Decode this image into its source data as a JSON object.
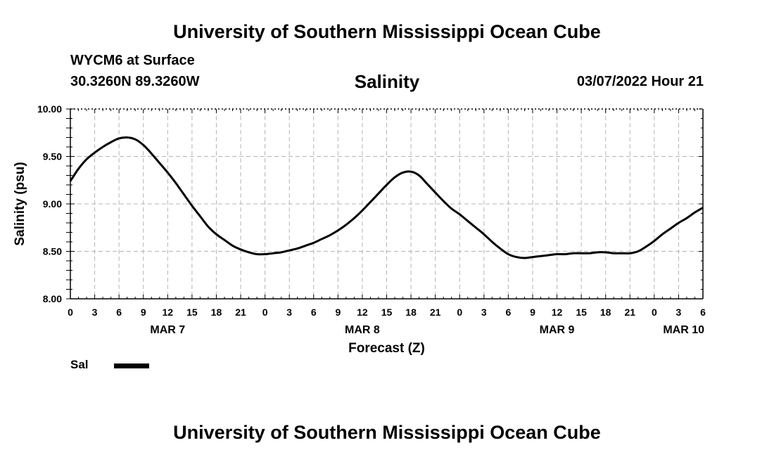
{
  "header": {
    "title": "University of Southern Mississippi Ocean Cube",
    "station": "WYCM6 at Surface",
    "coords": "30.3260N  89.3260W",
    "datetime": "03/07/2022 Hour 21"
  },
  "footer": {
    "title": "University of Southern Mississippi Ocean Cube"
  },
  "legend": {
    "label": "Sal",
    "color": "#000000"
  },
  "chart_data": {
    "type": "line",
    "title": "Salinity",
    "xlabel": "Forecast (Z)",
    "ylabel": "Salinity (psu)",
    "ylim": [
      8.0,
      10.0
    ],
    "yticks": [
      "8.00",
      "8.50",
      "9.00",
      "9.50",
      "10.00"
    ],
    "xlim": [
      0,
      78
    ],
    "xtick_labels": [
      "0",
      "3",
      "6",
      "9",
      "12",
      "15",
      "18",
      "21",
      "0",
      "3",
      "6",
      "9",
      "12",
      "15",
      "18",
      "21",
      "0",
      "3",
      "6",
      "9",
      "12",
      "15",
      "18",
      "21",
      "0",
      "3",
      "6"
    ],
    "date_labels": [
      {
        "label": "MAR 7",
        "hour": 12
      },
      {
        "label": "MAR 8",
        "hour": 36
      },
      {
        "label": "MAR 9",
        "hour": 60
      },
      {
        "label": "MAR 10",
        "hour": 78
      }
    ],
    "grid": true,
    "series": [
      {
        "name": "Sal",
        "color": "#000000",
        "x": [
          0,
          1,
          2,
          3,
          4,
          5,
          6,
          7,
          8,
          9,
          10,
          11,
          12,
          13,
          14,
          15,
          16,
          17,
          18,
          19,
          20,
          21,
          22,
          23,
          24,
          25,
          26,
          27,
          28,
          29,
          30,
          31,
          32,
          33,
          34,
          35,
          36,
          37,
          38,
          39,
          40,
          41,
          42,
          43,
          44,
          45,
          46,
          47,
          48,
          49,
          50,
          51,
          52,
          53,
          54,
          55,
          56,
          57,
          58,
          59,
          60,
          61,
          62,
          63,
          64,
          65,
          66,
          67,
          68,
          69,
          70,
          71,
          72,
          73,
          74,
          75,
          76,
          77,
          78
        ],
        "y": [
          9.24,
          9.37,
          9.47,
          9.54,
          9.6,
          9.65,
          9.69,
          9.7,
          9.68,
          9.62,
          9.53,
          9.43,
          9.33,
          9.22,
          9.1,
          8.98,
          8.87,
          8.76,
          8.68,
          8.62,
          8.56,
          8.52,
          8.49,
          8.47,
          8.47,
          8.48,
          8.49,
          8.51,
          8.53,
          8.56,
          8.59,
          8.63,
          8.67,
          8.72,
          8.78,
          8.85,
          8.93,
          9.02,
          9.11,
          9.2,
          9.28,
          9.33,
          9.34,
          9.3,
          9.21,
          9.12,
          9.03,
          8.95,
          8.89,
          8.82,
          8.75,
          8.68,
          8.6,
          8.53,
          8.47,
          8.44,
          8.43,
          8.44,
          8.45,
          8.46,
          8.47,
          8.47,
          8.48,
          8.48,
          8.48,
          8.49,
          8.49,
          8.48,
          8.48,
          8.48,
          8.5,
          8.55,
          8.61,
          8.68,
          8.74,
          8.8,
          8.85,
          8.91,
          8.96
        ]
      }
    ]
  }
}
